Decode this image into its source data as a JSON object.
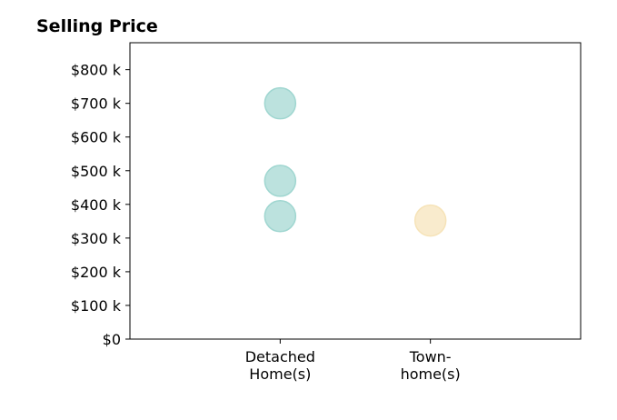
{
  "chart_data": {
    "type": "scatter",
    "title": "Selling Price",
    "xlabel": "",
    "ylabel": "",
    "categories": [
      "Detached\nHome(s)",
      "Town-\nhome(s)"
    ],
    "yticks": [
      "$0",
      "$100 k",
      "$200 k",
      "$300 k",
      "$400 k",
      "$500 k",
      "$600 k",
      "$700 k",
      "$800 k"
    ],
    "ylim": [
      0,
      880000
    ],
    "xlim": [
      0,
      3
    ],
    "grid": false,
    "points": [
      {
        "category": "Detached\nHome(s)",
        "y": 700000,
        "color": "#9fd6d0"
      },
      {
        "category": "Detached\nHome(s)",
        "y": 470000,
        "color": "#9fd6d0"
      },
      {
        "category": "Detached\nHome(s)",
        "y": 365000,
        "color": "#9fd6d0"
      },
      {
        "category": "Town-\nhome(s)",
        "y": 352000,
        "color": "#f6e3b8"
      }
    ]
  }
}
